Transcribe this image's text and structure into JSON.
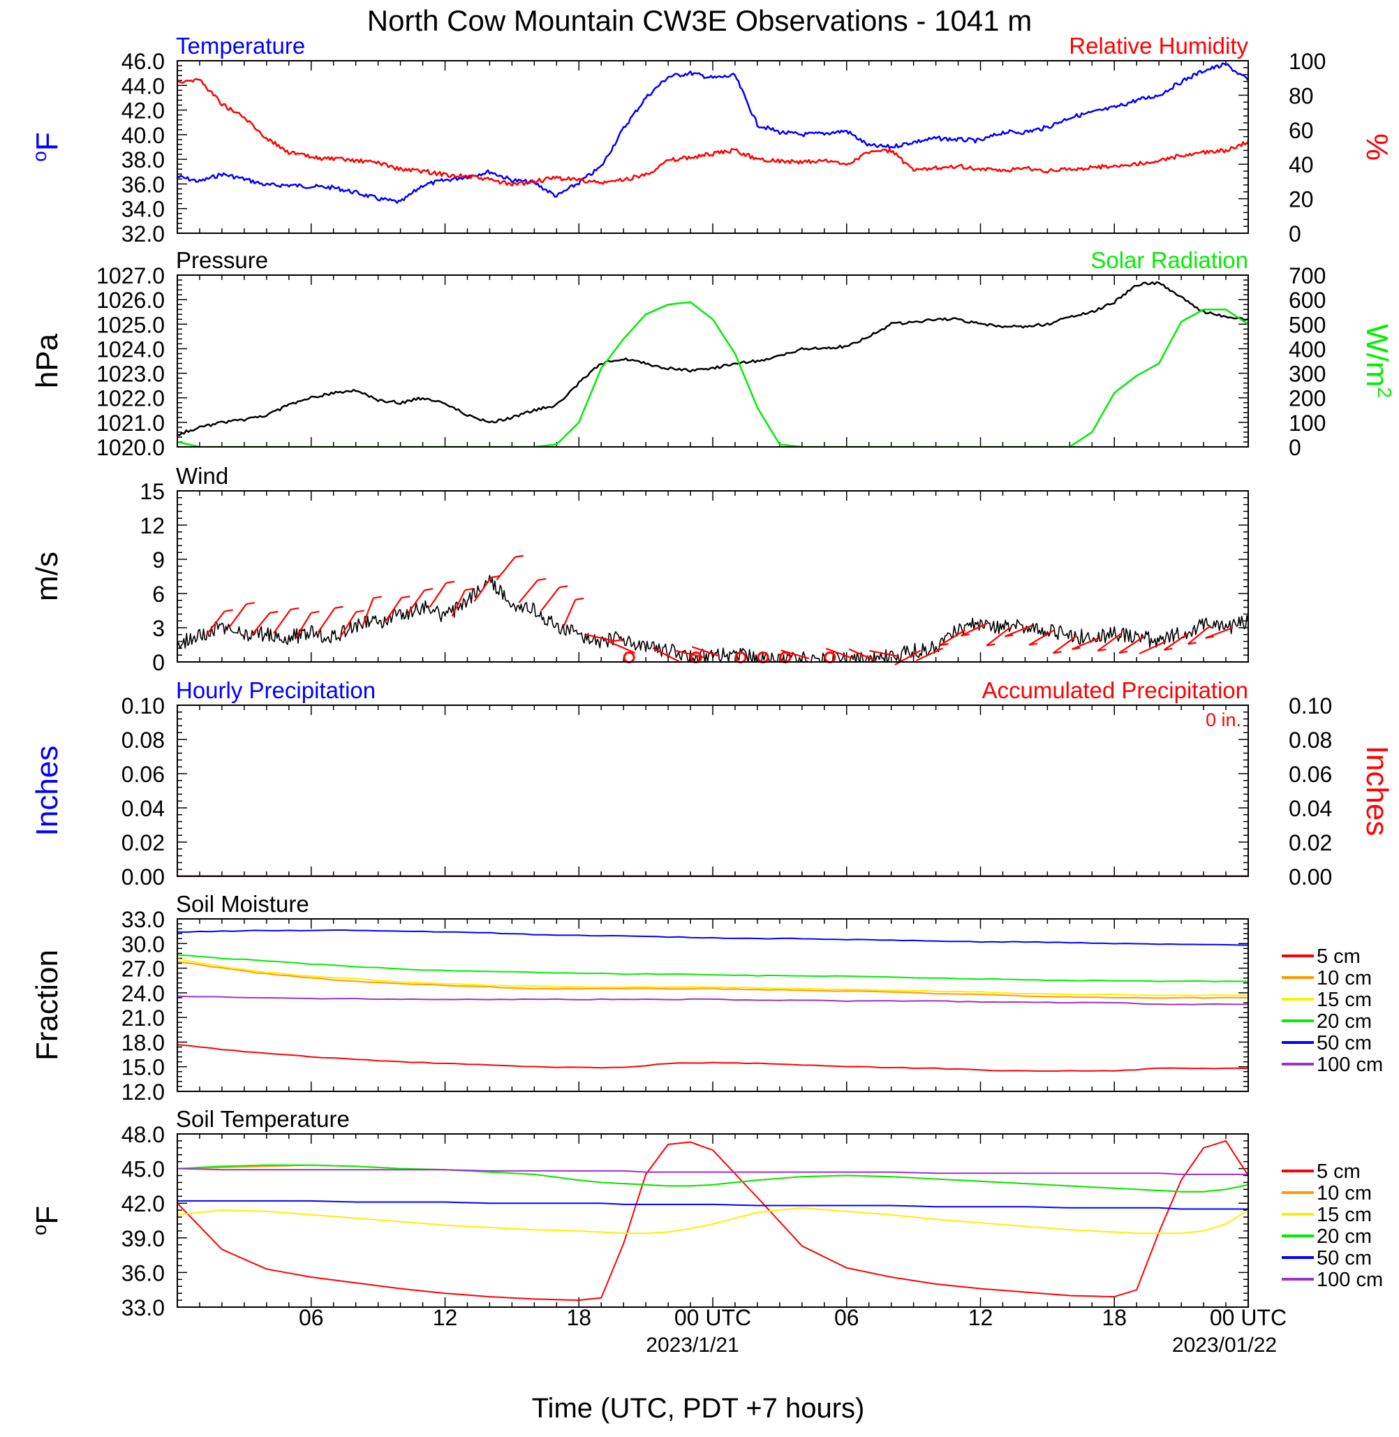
{
  "page_title": "North Cow Mountain CW3E Observations - 1041 m",
  "colors": {
    "blue": "#0000ff",
    "red": "#ff0000",
    "green": "#00ee00",
    "black": "#000000",
    "orange": "#ff9900",
    "yellow": "#ffee00",
    "purple": "#9933cc"
  },
  "x_axis": {
    "title": "Time (UTC, PDT +7 hours)",
    "tick_labels": [
      "06",
      "12",
      "18",
      "00 UTC",
      "06",
      "12",
      "18",
      "00 UTC"
    ],
    "date_labels": [
      "2023/1/21",
      "2023/01/22"
    ]
  },
  "chart_data": [
    {
      "id": "temp_rh",
      "type": "line",
      "left_title": "Temperature",
      "right_title": "Relative Humidity",
      "ylabel": "oF",
      "ylabel_right": "%",
      "ylim": [
        32,
        46
      ],
      "ylim_right": [
        0,
        100
      ],
      "ytick_labels": [
        "32.0",
        "34.0",
        "36.0",
        "38.0",
        "40.0",
        "42.0",
        "44.0",
        "46.0"
      ],
      "ytick_labels_right": [
        "0",
        "20",
        "40",
        "60",
        "80",
        "100"
      ],
      "x_hours": [
        0,
        1,
        2,
        3,
        4,
        5,
        6,
        7,
        8,
        9,
        10,
        11,
        12,
        13,
        14,
        15,
        16,
        17,
        18,
        19,
        20,
        21,
        22,
        23,
        24,
        25,
        26,
        27,
        28,
        29,
        30,
        31,
        32,
        33,
        34,
        35,
        36,
        37,
        38,
        39,
        40,
        41,
        42,
        43,
        44,
        45,
        46,
        47,
        48
      ],
      "series": [
        {
          "name": "Temperature",
          "axis": "left",
          "color": "blue",
          "values": [
            36.6,
            36.2,
            36.8,
            36.4,
            35.9,
            35.9,
            35.8,
            35.7,
            35.3,
            34.8,
            34.5,
            35.9,
            36.3,
            36.6,
            37.0,
            36.3,
            36.1,
            35.0,
            36.1,
            37.4,
            40.5,
            43.0,
            44.7,
            45.0,
            44.6,
            44.8,
            40.8,
            40.2,
            40.0,
            40.1,
            40.3,
            39.1,
            39.0,
            39.4,
            39.7,
            39.6,
            39.5,
            40.2,
            40.2,
            40.6,
            41.4,
            41.8,
            42.2,
            42.8,
            43.2,
            44.3,
            45.2,
            45.7,
            44.4
          ]
        },
        {
          "name": "Relative Humidity",
          "axis": "right",
          "color": "red",
          "values": [
            88,
            89,
            75,
            67,
            55,
            47,
            44,
            43,
            42,
            41,
            37,
            36,
            34,
            33,
            31,
            28,
            30,
            32,
            31,
            29,
            31,
            34,
            42,
            44,
            46,
            48,
            43,
            42,
            41,
            42,
            40,
            47,
            48,
            36,
            38,
            39,
            37,
            36,
            38,
            36,
            37,
            38,
            39,
            40,
            42,
            45,
            47,
            48,
            53
          ]
        }
      ]
    },
    {
      "id": "pressure_solar",
      "type": "line",
      "left_title": "Pressure",
      "right_title": "Solar Radiation",
      "ylabel": "hPa",
      "ylabel_right": "W/m2",
      "ylim": [
        1020,
        1027
      ],
      "ylim_right": [
        0,
        700
      ],
      "ytick_labels": [
        "1020.0",
        "1021.0",
        "1022.0",
        "1023.0",
        "1024.0",
        "1025.0",
        "1026.0",
        "1027.0"
      ],
      "ytick_labels_right": [
        "0",
        "100",
        "200",
        "300",
        "400",
        "500",
        "600",
        "700"
      ],
      "x_hours": [
        0,
        1,
        2,
        3,
        4,
        5,
        6,
        7,
        8,
        9,
        10,
        11,
        12,
        13,
        14,
        15,
        16,
        17,
        18,
        19,
        20,
        21,
        22,
        23,
        24,
        25,
        26,
        27,
        28,
        29,
        30,
        31,
        32,
        33,
        34,
        35,
        36,
        37,
        38,
        39,
        40,
        41,
        42,
        43,
        44,
        45,
        46,
        47,
        48
      ],
      "series": [
        {
          "name": "Pressure",
          "axis": "left",
          "color": "black",
          "values": [
            1020.5,
            1020.8,
            1021.0,
            1021.1,
            1021.3,
            1021.7,
            1022.0,
            1022.2,
            1022.3,
            1021.9,
            1021.8,
            1022.0,
            1021.8,
            1021.3,
            1021.0,
            1021.2,
            1021.5,
            1021.7,
            1022.6,
            1023.4,
            1023.6,
            1023.4,
            1023.2,
            1023.1,
            1023.2,
            1023.4,
            1023.5,
            1023.7,
            1024.0,
            1024.0,
            1024.1,
            1024.5,
            1025.0,
            1025.1,
            1025.2,
            1025.2,
            1025.0,
            1024.9,
            1024.9,
            1025.0,
            1025.3,
            1025.5,
            1025.9,
            1026.6,
            1026.7,
            1026.1,
            1025.5,
            1025.3,
            1025.2
          ]
        },
        {
          "name": "Solar Radiation",
          "axis": "right",
          "color": "green",
          "values": [
            20,
            0,
            0,
            0,
            0,
            0,
            0,
            0,
            0,
            0,
            0,
            0,
            0,
            0,
            0,
            0,
            0,
            10,
            100,
            320,
            440,
            540,
            580,
            590,
            520,
            380,
            160,
            10,
            0,
            0,
            0,
            0,
            0,
            0,
            0,
            0,
            0,
            0,
            0,
            0,
            0,
            60,
            220,
            290,
            340,
            510,
            560,
            560,
            500
          ]
        }
      ]
    },
    {
      "id": "wind",
      "type": "line",
      "left_title": "Wind",
      "ylabel": "m/s",
      "ylim": [
        0,
        15
      ],
      "ytick_labels": [
        "0",
        "3",
        "6",
        "9",
        "12",
        "15"
      ],
      "x_hours": [
        0,
        1,
        2,
        3,
        4,
        5,
        6,
        7,
        8,
        9,
        10,
        11,
        12,
        13,
        14,
        15,
        16,
        17,
        18,
        19,
        20,
        21,
        22,
        23,
        24,
        25,
        26,
        27,
        28,
        29,
        30,
        31,
        32,
        33,
        34,
        35,
        36,
        37,
        38,
        39,
        40,
        41,
        42,
        43,
        44,
        45,
        46,
        47,
        48
      ],
      "series": [
        {
          "name": "Wind",
          "color": "black",
          "values": [
            1.5,
            2.4,
            3.0,
            2.3,
            2.5,
            2.1,
            2.6,
            2.2,
            3.2,
            3.5,
            4.2,
            4.8,
            4.0,
            5.3,
            7.2,
            5.2,
            4.5,
            3.1,
            2.4,
            1.8,
            2.1,
            1.2,
            1.0,
            0.4,
            0.5,
            0.6,
            0.4,
            0.3,
            0.3,
            0.2,
            0.3,
            0.1,
            0.5,
            1.0,
            1.2,
            2.8,
            3.4,
            3.0,
            3.2,
            2.8,
            2.3,
            2.1,
            2.5,
            2.2,
            1.8,
            2.5,
            3.2,
            3.0,
            3.5
          ]
        }
      ],
      "calm_markers_hours": [
        20,
        23,
        25,
        26,
        27,
        29
      ]
    },
    {
      "id": "precip",
      "type": "line",
      "left_title": "Hourly Precipitation",
      "right_title": "Accumulated Precipitation",
      "annotation": "0 in.",
      "ylabel": "Inches",
      "ylabel_right": "Inches",
      "ylim": [
        0,
        0.1
      ],
      "ylim_right": [
        0,
        0.1
      ],
      "ytick_labels": [
        "0.00",
        "0.02",
        "0.04",
        "0.06",
        "0.08",
        "0.10"
      ],
      "ytick_labels_right": [
        "0.00",
        "0.02",
        "0.04",
        "0.06",
        "0.08",
        "0.10"
      ],
      "x_hours": [
        0,
        48
      ],
      "series": [
        {
          "name": "Hourly Precipitation",
          "axis": "left",
          "color": "blue",
          "values": [
            0,
            0
          ]
        },
        {
          "name": "Accumulated Precipitation",
          "axis": "right",
          "color": "red",
          "values": [
            0,
            0
          ]
        }
      ]
    },
    {
      "id": "soil_moisture",
      "type": "line",
      "left_title": "Soil Moisture",
      "ylabel": "Fraction",
      "ylim": [
        12,
        33
      ],
      "ytick_labels": [
        "12.0",
        "15.0",
        "18.0",
        "21.0",
        "24.0",
        "27.0",
        "30.0",
        "33.0"
      ],
      "x_hours": [
        0,
        2,
        4,
        6,
        8,
        10,
        12,
        14,
        16,
        18,
        20,
        22,
        24,
        26,
        28,
        30,
        32,
        34,
        36,
        38,
        40,
        42,
        44,
        46,
        48
      ],
      "series": [
        {
          "name": "5 cm",
          "color": "red",
          "values": [
            17.7,
            17.1,
            16.6,
            16.2,
            15.9,
            15.6,
            15.4,
            15.2,
            15.0,
            14.9,
            14.9,
            15.4,
            15.5,
            15.4,
            15.2,
            15.0,
            14.9,
            14.8,
            14.6,
            14.5,
            14.5,
            14.5,
            14.8,
            14.8,
            14.8
          ]
        },
        {
          "name": "10 cm",
          "color": "orange",
          "values": [
            27.8,
            27.0,
            26.3,
            25.8,
            25.4,
            25.1,
            24.9,
            24.7,
            24.5,
            24.5,
            24.5,
            24.5,
            24.5,
            24.4,
            24.3,
            24.2,
            24.1,
            23.9,
            23.8,
            23.6,
            23.5,
            23.4,
            23.4,
            23.4,
            23.4
          ]
        },
        {
          "name": "15 cm",
          "color": "yellow",
          "values": [
            28.1,
            27.2,
            26.5,
            26.0,
            25.7,
            25.3,
            25.1,
            24.9,
            24.8,
            24.7,
            24.7,
            24.7,
            24.7,
            24.6,
            24.5,
            24.4,
            24.3,
            24.2,
            24.1,
            23.9,
            23.8,
            23.8,
            23.7,
            23.7,
            23.7
          ]
        },
        {
          "name": "20 cm",
          "color": "green",
          "values": [
            28.6,
            28.2,
            27.9,
            27.5,
            27.2,
            26.9,
            26.7,
            26.6,
            26.5,
            26.4,
            26.3,
            26.3,
            26.2,
            26.1,
            26.1,
            26.0,
            25.9,
            25.8,
            25.7,
            25.6,
            25.5,
            25.5,
            25.4,
            25.4,
            25.4
          ]
        },
        {
          "name": "50 cm",
          "color": "blue",
          "values": [
            31.4,
            31.5,
            31.6,
            31.6,
            31.6,
            31.5,
            31.4,
            31.3,
            31.1,
            31.0,
            30.9,
            30.8,
            30.7,
            30.6,
            30.6,
            30.5,
            30.4,
            30.3,
            30.2,
            30.2,
            30.1,
            30.0,
            29.9,
            29.9,
            29.8
          ]
        },
        {
          "name": "100 cm",
          "color": "purple",
          "values": [
            23.6,
            23.5,
            23.4,
            23.3,
            23.3,
            23.2,
            23.2,
            23.2,
            23.2,
            23.2,
            23.2,
            23.2,
            23.2,
            23.1,
            23.1,
            23.0,
            23.0,
            23.0,
            22.9,
            22.9,
            22.8,
            22.8,
            22.6,
            22.6,
            22.6
          ]
        }
      ],
      "legend": [
        "5 cm",
        "10 cm",
        "15 cm",
        "20 cm",
        "50 cm",
        "100 cm"
      ]
    },
    {
      "id": "soil_temp",
      "type": "line",
      "left_title": "Soil Temperature",
      "ylabel": "oF",
      "ylim": [
        33,
        48
      ],
      "ytick_labels": [
        "33.0",
        "36.0",
        "39.0",
        "42.0",
        "45.0",
        "48.0"
      ],
      "x_hours": [
        0,
        2,
        4,
        6,
        8,
        10,
        12,
        14,
        16,
        18,
        19,
        20,
        21,
        22,
        23,
        24,
        26,
        28,
        30,
        32,
        34,
        36,
        38,
        40,
        42,
        43,
        44,
        45,
        46,
        47,
        48
      ],
      "series": [
        {
          "name": "5 cm",
          "color": "red",
          "values": [
            42.0,
            38.0,
            36.3,
            35.6,
            35.1,
            34.6,
            34.2,
            33.9,
            33.7,
            33.6,
            33.8,
            38.5,
            44.5,
            47.1,
            47.3,
            46.6,
            42.5,
            38.3,
            36.4,
            35.6,
            35.0,
            34.6,
            34.3,
            34.0,
            33.9,
            34.5,
            39.5,
            44.0,
            46.8,
            47.4,
            44.4
          ]
        },
        {
          "name": "10 cm",
          "color": "orange",
          "values": [
            45.0,
            45.1,
            45.2,
            45.3,
            45.2,
            45.0,
            44.9,
            44.7,
            44.5,
            44.0,
            43.8,
            43.7,
            43.6,
            43.5,
            43.5,
            43.6,
            44.0,
            44.3,
            44.4,
            44.3,
            44.1,
            43.9,
            43.7,
            43.5,
            43.3,
            43.2,
            43.1,
            43.0,
            43.0,
            43.2,
            43.6
          ]
        },
        {
          "name": "15 cm",
          "color": "yellow",
          "values": [
            41.0,
            41.4,
            41.3,
            41.0,
            40.7,
            40.4,
            40.1,
            39.9,
            39.7,
            39.6,
            39.5,
            39.4,
            39.4,
            39.5,
            39.8,
            40.2,
            41.2,
            41.6,
            41.3,
            41.0,
            40.6,
            40.3,
            40.0,
            39.7,
            39.5,
            39.4,
            39.4,
            39.4,
            39.6,
            40.2,
            41.4
          ]
        },
        {
          "name": "20 cm",
          "color": "green",
          "values": [
            45.0,
            45.2,
            45.3,
            45.3,
            45.2,
            45.0,
            44.9,
            44.7,
            44.5,
            44.0,
            43.8,
            43.7,
            43.6,
            43.5,
            43.5,
            43.6,
            44.0,
            44.3,
            44.4,
            44.3,
            44.1,
            43.9,
            43.7,
            43.5,
            43.3,
            43.2,
            43.1,
            43.0,
            43.0,
            43.2,
            43.6
          ]
        },
        {
          "name": "50 cm",
          "color": "blue",
          "values": [
            42.2,
            42.2,
            42.2,
            42.2,
            42.1,
            42.1,
            42.1,
            42.0,
            42.0,
            42.0,
            42.0,
            41.9,
            41.9,
            41.9,
            41.9,
            41.9,
            41.8,
            41.8,
            41.8,
            41.8,
            41.7,
            41.7,
            41.7,
            41.6,
            41.6,
            41.6,
            41.6,
            41.5,
            41.5,
            41.5,
            41.5
          ]
        },
        {
          "name": "100 cm",
          "color": "purple",
          "values": [
            45.0,
            44.9,
            44.9,
            44.9,
            44.9,
            44.9,
            44.9,
            44.8,
            44.8,
            44.8,
            44.8,
            44.8,
            44.7,
            44.7,
            44.7,
            44.7,
            44.7,
            44.7,
            44.7,
            44.7,
            44.6,
            44.6,
            44.6,
            44.6,
            44.6,
            44.6,
            44.6,
            44.5,
            44.5,
            44.5,
            44.5
          ]
        }
      ],
      "legend": [
        "5 cm",
        "10 cm",
        "15 cm",
        "20 cm",
        "50 cm",
        "100 cm"
      ]
    }
  ]
}
